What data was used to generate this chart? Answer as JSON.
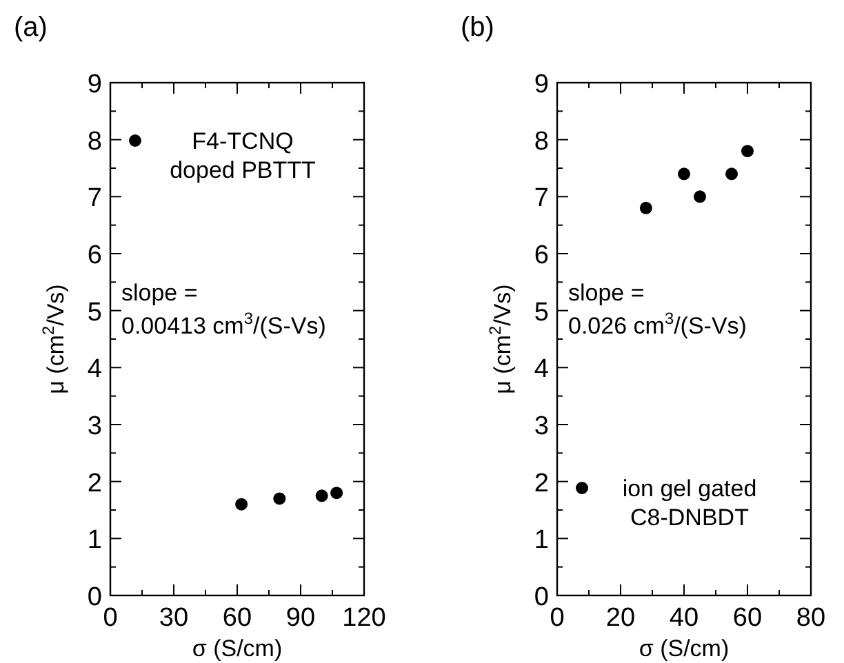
{
  "chart_data": [
    {
      "type": "scatter",
      "title": "(a)",
      "xlabel": "σ (S/cm)",
      "ylabel": "μ (cm$^{2}$/Vs)",
      "xlim": [
        0,
        120
      ],
      "ylim": [
        0,
        9
      ],
      "xticks": [
        0,
        {
          "value": 15,
          "label": null
        },
        30,
        {
          "value": 45,
          "label": null
        },
        60,
        {
          "value": 75,
          "label": null
        },
        90,
        {
          "value": 105,
          "label": null
        },
        120
      ],
      "yticks": [
        0,
        {
          "value": 0.5,
          "label": null
        },
        1,
        {
          "value": 1.5,
          "label": null
        },
        2,
        {
          "value": 2.5,
          "label": null
        },
        3,
        {
          "value": 3.5,
          "label": null
        },
        4,
        {
          "value": 4.5,
          "label": null
        },
        5,
        {
          "value": 5.5,
          "label": null
        },
        6,
        {
          "value": 6.5,
          "label": null
        },
        7,
        {
          "value": 7.5,
          "label": null
        },
        8,
        {
          "value": 8.5,
          "label": null
        },
        9
      ],
      "series": [
        {
          "name": "F4-TCNQ\ndoped PBTTT",
          "color": "#000000",
          "x": [
            62,
            80,
            100,
            107
          ],
          "values": [
            1.6,
            1.7,
            1.75,
            1.8
          ]
        }
      ],
      "marker": "circle",
      "legend": "top left",
      "grid": false,
      "annotations": [
        "slope =\n0.00413 cm$^{3}$/(S-Vs)"
      ]
    },
    {
      "type": "scatter",
      "title": "(b)",
      "xlabel": "σ (S/cm)",
      "ylabel": "μ (cm$^{2}$/Vs)",
      "xlim": [
        0,
        80
      ],
      "ylim": [
        0,
        9
      ],
      "xticks": [
        0,
        {
          "value": 10,
          "label": null
        },
        20,
        {
          "value": 30,
          "label": null
        },
        40,
        {
          "value": 50,
          "label": null
        },
        60,
        {
          "value": 70,
          "label": null
        },
        80
      ],
      "yticks": [
        0,
        {
          "value": 0.5,
          "label": null
        },
        1,
        {
          "value": 1.5,
          "label": null
        },
        2,
        {
          "value": 2.5,
          "label": null
        },
        3,
        {
          "value": 3.5,
          "label": null
        },
        4,
        {
          "value": 4.5,
          "label": null
        },
        5,
        {
          "value": 5.5,
          "label": null
        },
        6,
        {
          "value": 6.5,
          "label": null
        },
        7,
        {
          "value": 7.5,
          "label": null
        },
        8,
        {
          "value": 8.5,
          "label": null
        },
        9
      ],
      "series": [
        {
          "name": "ion gel gated\nC8-DNBDT",
          "color": "#000000",
          "x": [
            28,
            40,
            45,
            55,
            60
          ],
          "values": [
            6.8,
            7.4,
            7.0,
            7.4,
            7.8
          ]
        }
      ],
      "marker": "circle",
      "legend": "bottom left",
      "grid": false,
      "annotations": [
        "slope =\n0.026 cm$^{3}$/(S-Vs)"
      ]
    }
  ]
}
